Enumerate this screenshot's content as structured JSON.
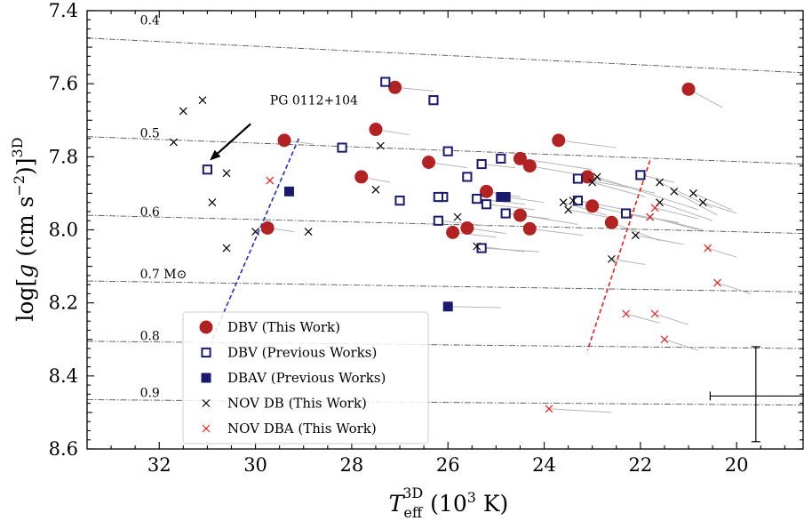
{
  "chart_data": {
    "type": "scatter",
    "xlabel": {
      "base": "T",
      "sub": "eff",
      "sup": "3D",
      "rest": " (10",
      "unit_sup": "3",
      "unit": " K)"
    },
    "ylabel": {
      "pre": "log[",
      "g": "g",
      "mid": " (cm s",
      "exp": "−2",
      "post": ")]",
      "sup": "3D"
    },
    "xlim": [
      33.5,
      18.6
    ],
    "ylim": [
      8.6,
      7.4
    ],
    "xticks": [
      "32",
      "30",
      "28",
      "26",
      "24",
      "22",
      "20"
    ],
    "xtick_values": [
      32,
      30,
      28,
      26,
      24,
      22,
      20
    ],
    "yticks": [
      "7.4",
      "7.6",
      "7.8",
      "8.0",
      "8.2",
      "8.4",
      "8.6"
    ],
    "ytick_values": [
      7.4,
      7.6,
      7.8,
      8.0,
      8.2,
      8.4,
      8.6
    ],
    "mass_tracks": [
      {
        "label": "0.4",
        "label_x": 32.4,
        "label_y": 7.425,
        "x0": 33.5,
        "y0": 7.475,
        "x1": 18.6,
        "y1": 7.57
      },
      {
        "label": "0.5",
        "label_x": 32.4,
        "label_y": 7.735,
        "x0": 33.5,
        "y0": 7.745,
        "x1": 18.6,
        "y1": 7.82
      },
      {
        "label": "0.6",
        "label_x": 32.4,
        "label_y": 7.95,
        "x0": 33.5,
        "y0": 7.96,
        "x1": 18.6,
        "y1": 8.01
      },
      {
        "label": "0.7 M⊙",
        "label_x": 32.4,
        "label_y": 8.12,
        "x0": 33.5,
        "y0": 8.14,
        "x1": 18.6,
        "y1": 8.17
      },
      {
        "label": "0.8",
        "label_x": 32.4,
        "label_y": 8.29,
        "x0": 33.5,
        "y0": 8.305,
        "x1": 18.6,
        "y1": 8.325
      },
      {
        "label": "0.9",
        "label_x": 32.4,
        "label_y": 8.445,
        "x0": 33.5,
        "y0": 8.465,
        "x1": 18.6,
        "y1": 8.48
      }
    ],
    "blue_edge": {
      "x0": 29.1,
      "y0": 7.75,
      "x1": 30.9,
      "y1": 8.3
    },
    "red_edge": {
      "x0": 21.8,
      "y0": 7.81,
      "x1": 23.1,
      "y1": 8.33
    },
    "series": [
      {
        "name": "DBV (This Work)",
        "marker": "circle",
        "color": "#b22222",
        "points": [
          [
            27.1,
            7.61
          ],
          [
            21.0,
            7.615
          ],
          [
            27.5,
            7.725
          ],
          [
            29.4,
            7.755
          ],
          [
            23.7,
            7.755
          ],
          [
            26.4,
            7.815
          ],
          [
            24.5,
            7.805
          ],
          [
            24.3,
            7.825
          ],
          [
            27.8,
            7.855
          ],
          [
            23.1,
            7.855
          ],
          [
            25.2,
            7.895
          ],
          [
            23.0,
            7.935
          ],
          [
            24.5,
            7.96
          ],
          [
            22.6,
            7.98
          ],
          [
            29.75,
            7.995
          ],
          [
            24.3,
            7.997
          ],
          [
            25.9,
            8.007
          ],
          [
            25.6,
            7.995
          ]
        ],
        "lines": [
          [
            27.1,
            7.61,
            26.3,
            7.62
          ],
          [
            21.0,
            7.615,
            20.3,
            7.665
          ],
          [
            27.5,
            7.725,
            26.8,
            7.74
          ],
          [
            29.4,
            7.755,
            28.8,
            7.765
          ],
          [
            23.7,
            7.755,
            22.5,
            7.775
          ],
          [
            26.4,
            7.815,
            25.6,
            7.83
          ],
          [
            24.5,
            7.805,
            23.0,
            7.835
          ],
          [
            24.3,
            7.825,
            22.8,
            7.86
          ],
          [
            27.8,
            7.855,
            27.2,
            7.87
          ],
          [
            23.1,
            7.855,
            21.7,
            7.9
          ],
          [
            25.2,
            7.895,
            24.5,
            7.91
          ],
          [
            23.0,
            7.935,
            21.8,
            7.97
          ],
          [
            24.5,
            7.96,
            23.3,
            7.985
          ],
          [
            22.6,
            7.98,
            21.6,
            8.03
          ],
          [
            29.75,
            7.995,
            29.2,
            8.005
          ],
          [
            24.3,
            7.997,
            23.2,
            8.015
          ],
          [
            25.9,
            8.007,
            25.0,
            8.02
          ],
          [
            25.6,
            7.995,
            24.8,
            8.01
          ]
        ]
      },
      {
        "name": "DBV (Previous Works)",
        "marker": "open-square",
        "color": "#1a1a6e",
        "points": [
          [
            27.3,
            7.595
          ],
          [
            26.3,
            7.645
          ],
          [
            31.0,
            7.835
          ],
          [
            28.2,
            7.775
          ],
          [
            26.0,
            7.785
          ],
          [
            24.9,
            7.805
          ],
          [
            25.3,
            7.82
          ],
          [
            25.6,
            7.855
          ],
          [
            22.0,
            7.85
          ],
          [
            23.3,
            7.86
          ],
          [
            27.0,
            7.92
          ],
          [
            26.1,
            7.91
          ],
          [
            26.2,
            7.91
          ],
          [
            25.4,
            7.915
          ],
          [
            25.2,
            7.93
          ],
          [
            23.3,
            7.92
          ],
          [
            24.8,
            7.955
          ],
          [
            22.3,
            7.955
          ],
          [
            26.2,
            7.975
          ],
          [
            25.3,
            8.05
          ]
        ],
        "lines": [
          [
            25.3,
            7.82,
            24.6,
            7.83
          ],
          [
            22.0,
            7.85,
            21.3,
            7.87
          ],
          [
            23.3,
            7.86,
            22.2,
            7.885
          ],
          [
            25.4,
            7.915,
            24.4,
            7.93
          ],
          [
            25.2,
            7.93,
            24.2,
            7.945
          ],
          [
            23.3,
            7.92,
            22.1,
            7.95
          ],
          [
            24.8,
            7.955,
            23.9,
            7.97
          ],
          [
            22.3,
            7.955,
            21.2,
            7.98
          ],
          [
            26.2,
            7.975,
            25.1,
            7.99
          ],
          [
            25.3,
            8.05,
            24.1,
            8.06
          ]
        ]
      },
      {
        "name": "DBAV (Previous Works)",
        "marker": "filled-square",
        "color": "#1a1a6e",
        "points": [
          [
            29.3,
            7.895
          ],
          [
            24.9,
            7.91
          ],
          [
            24.8,
            7.91
          ],
          [
            26.0,
            8.21
          ]
        ],
        "lines": [
          [
            24.8,
            7.91,
            24.0,
            7.925
          ],
          [
            26.0,
            8.21,
            24.9,
            8.213
          ]
        ]
      },
      {
        "name": "NOV DB (This Work)",
        "marker": "x",
        "color": "#000000",
        "points": [
          [
            31.5,
            7.675
          ],
          [
            31.1,
            7.645
          ],
          [
            31.7,
            7.76
          ],
          [
            30.6,
            7.845
          ],
          [
            30.9,
            7.925
          ],
          [
            30.6,
            8.05
          ],
          [
            30.0,
            8.005
          ],
          [
            28.9,
            8.005
          ],
          [
            27.4,
            7.77
          ],
          [
            27.5,
            7.89
          ],
          [
            25.8,
            7.965
          ],
          [
            25.4,
            8.045
          ],
          [
            23.6,
            7.925
          ],
          [
            23.5,
            7.945
          ],
          [
            23.4,
            7.92
          ],
          [
            22.9,
            7.855
          ],
          [
            22.6,
            8.08
          ],
          [
            22.1,
            8.015
          ],
          [
            21.6,
            7.87
          ],
          [
            21.3,
            7.895
          ],
          [
            21.6,
            7.925
          ],
          [
            20.9,
            7.9
          ],
          [
            20.7,
            7.925
          ],
          [
            21.8,
            7.965
          ],
          [
            23.0,
            7.87
          ]
        ],
        "lines": [
          [
            22.9,
            7.855,
            20.8,
            7.945
          ],
          [
            21.6,
            7.87,
            20.5,
            7.94
          ],
          [
            21.3,
            7.895,
            20.4,
            7.96
          ],
          [
            21.6,
            7.925,
            20.5,
            7.975
          ],
          [
            20.9,
            7.9,
            20.1,
            7.945
          ],
          [
            20.7,
            7.925,
            20.0,
            7.955
          ],
          [
            21.8,
            7.965,
            20.8,
            8.0
          ],
          [
            23.0,
            7.87,
            21.9,
            7.91
          ],
          [
            23.6,
            7.925,
            22.7,
            7.96
          ],
          [
            23.5,
            7.945,
            22.5,
            7.97
          ],
          [
            22.1,
            8.015,
            21.1,
            8.04
          ],
          [
            22.6,
            8.08,
            21.9,
            8.095
          ],
          [
            25.4,
            8.045,
            24.4,
            8.06
          ]
        ]
      },
      {
        "name": "NOV DBA (This Work)",
        "marker": "x",
        "color": "#e8201e",
        "points": [
          [
            29.7,
            7.865
          ],
          [
            21.8,
            7.965
          ],
          [
            21.7,
            7.94
          ],
          [
            20.6,
            8.05
          ],
          [
            20.4,
            8.145
          ],
          [
            22.3,
            8.23
          ],
          [
            21.7,
            8.23
          ],
          [
            21.5,
            8.3
          ],
          [
            23.9,
            8.49
          ]
        ],
        "lines": [
          [
            21.8,
            7.965,
            20.7,
            8.0
          ],
          [
            21.7,
            7.94,
            20.8,
            7.97
          ],
          [
            20.6,
            8.05,
            20.0,
            8.075
          ],
          [
            20.4,
            8.145,
            19.7,
            8.175
          ],
          [
            22.3,
            8.23,
            21.6,
            8.255
          ],
          [
            21.7,
            8.23,
            21.0,
            8.26
          ],
          [
            21.5,
            8.3,
            20.8,
            8.33
          ],
          [
            23.9,
            8.49,
            22.6,
            8.5
          ]
        ]
      }
    ],
    "annotation": {
      "text": "PG 0112+104",
      "text_x": 29.7,
      "text_y": 7.645,
      "arrow_from_x": 30.1,
      "arrow_from_y": 7.71,
      "arrow_to_x": 30.95,
      "arrow_to_y": 7.81
    },
    "error_bar": {
      "x": 19.6,
      "y": 8.455,
      "xerr": [
        0.95,
        1.05
      ],
      "yerr": [
        0.135,
        0.125
      ]
    },
    "legend": {
      "position": "lower-center",
      "entries": [
        "DBV (This Work)",
        "DBV (Previous Works)",
        "DBAV (Previous Works)",
        "NOV DB (This Work)",
        "NOV DBA (This Work)"
      ]
    }
  }
}
